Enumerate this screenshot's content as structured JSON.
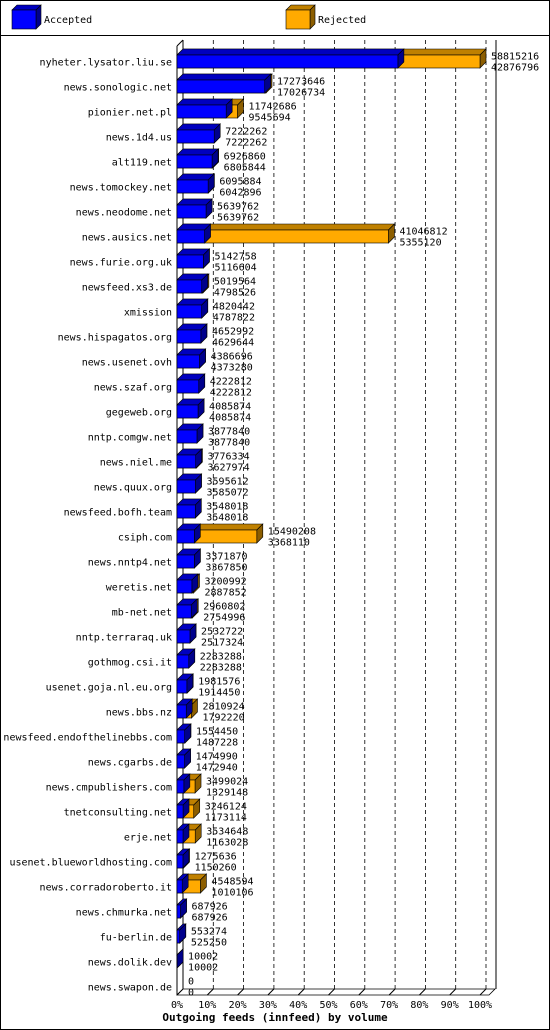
{
  "chart_data": {
    "type": "bar",
    "orientation": "horizontal",
    "stacked": true,
    "title": "Outgoing feeds (innfeed) by volume",
    "legend": {
      "placement": "top-left",
      "entries": [
        {
          "name": "Accepted",
          "color": "#0000ff"
        },
        {
          "name": "Rejected",
          "color": "#ffaa00"
        }
      ]
    },
    "x_axis": {
      "range": [
        0,
        100
      ],
      "unit": "%",
      "ticks": [
        "0%",
        "10%",
        "20%",
        "30%",
        "40%",
        "50%",
        "60%",
        "70%",
        "80%",
        "90%",
        "100%"
      ],
      "grid": "dashed"
    },
    "max_total": 58815216,
    "rows": [
      {
        "name": "nyheter.lysator.liu.se",
        "total": "58815216",
        "accepted": "42876796"
      },
      {
        "name": "news.sonologic.net",
        "total": "17273646",
        "accepted": "17026734"
      },
      {
        "name": "pionier.net.pl",
        "total": "11742686",
        "accepted": "9545694"
      },
      {
        "name": "news.1d4.us",
        "total": "7222262",
        "accepted": "7222262"
      },
      {
        "name": "alt119.net",
        "total": "6926860",
        "accepted": "6805844"
      },
      {
        "name": "news.tomockey.net",
        "total": "6095884",
        "accepted": "6042896"
      },
      {
        "name": "news.neodome.net",
        "total": "5639762",
        "accepted": "5639762"
      },
      {
        "name": "news.ausics.net",
        "total": "41046812",
        "accepted": "5355120"
      },
      {
        "name": "news.furie.org.uk",
        "total": "5142758",
        "accepted": "5116604"
      },
      {
        "name": "newsfeed.xs3.de",
        "total": "5019564",
        "accepted": "4798526"
      },
      {
        "name": "xmission",
        "total": "4820442",
        "accepted": "4787822"
      },
      {
        "name": "news.hispagatos.org",
        "total": "4652992",
        "accepted": "4629644"
      },
      {
        "name": "news.usenet.ovh",
        "total": "4386696",
        "accepted": "4373280"
      },
      {
        "name": "news.szaf.org",
        "total": "4222812",
        "accepted": "4222812"
      },
      {
        "name": "gegeweb.org",
        "total": "4085874",
        "accepted": "4085874"
      },
      {
        "name": "nntp.comgw.net",
        "total": "3877840",
        "accepted": "3877840"
      },
      {
        "name": "news.niel.me",
        "total": "3776334",
        "accepted": "3627974"
      },
      {
        "name": "news.quux.org",
        "total": "3595612",
        "accepted": "3585072"
      },
      {
        "name": "newsfeed.bofh.team",
        "total": "3548018",
        "accepted": "3548018"
      },
      {
        "name": "csiph.com",
        "total": "15490208",
        "accepted": "3368110"
      },
      {
        "name": "news.nntp4.net",
        "total": "3371870",
        "accepted": "3367850"
      },
      {
        "name": "weretis.net",
        "total": "3200992",
        "accepted": "2887852"
      },
      {
        "name": "mb-net.net",
        "total": "2960802",
        "accepted": "2754996"
      },
      {
        "name": "nntp.terraraq.uk",
        "total": "2532722",
        "accepted": "2517324"
      },
      {
        "name": "gothmog.csi.it",
        "total": "2283288",
        "accepted": "2283288"
      },
      {
        "name": "usenet.goja.nl.eu.org",
        "total": "1981576",
        "accepted": "1914450"
      },
      {
        "name": "news.bbs.nz",
        "total": "2810924",
        "accepted": "1792220"
      },
      {
        "name": "newsfeed.endofthelinebbs.com",
        "total": "1554450",
        "accepted": "1487228"
      },
      {
        "name": "news.cgarbs.de",
        "total": "1474990",
        "accepted": "1472940"
      },
      {
        "name": "news.cmpublishers.com",
        "total": "3499024",
        "accepted": "1329148"
      },
      {
        "name": "tnetconsulting.net",
        "total": "3246124",
        "accepted": "1173114"
      },
      {
        "name": "erje.net",
        "total": "3534648",
        "accepted": "1163028"
      },
      {
        "name": "usenet.blueworldhosting.com",
        "total": "1275636",
        "accepted": "1150260"
      },
      {
        "name": "news.corradoroberto.it",
        "total": "4548594",
        "accepted": "1010106"
      },
      {
        "name": "news.chmurka.net",
        "total": "687926",
        "accepted": "687926"
      },
      {
        "name": "fu-berlin.de",
        "total": "553274",
        "accepted": "525250"
      },
      {
        "name": "news.dolik.dev",
        "total": "10002",
        "accepted": "10002"
      },
      {
        "name": "news.swapon.de",
        "total": "0",
        "accepted": "0"
      }
    ]
  }
}
